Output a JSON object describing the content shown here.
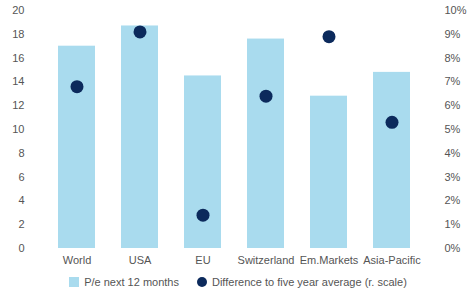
{
  "chart_data": {
    "type": "bar",
    "categories": [
      "World",
      "USA",
      "EU",
      "Switzerland",
      "Em.Markets",
      "Asia-Pacific"
    ],
    "series": [
      {
        "name": "P/e next 12 months",
        "type": "bar",
        "color": "#a9dbee",
        "values": [
          17.0,
          18.7,
          14.5,
          17.6,
          12.8,
          14.8
        ]
      },
      {
        "name": "Difference to five year average (r. scale)",
        "type": "scatter",
        "marker": "circle",
        "color": "#0c2a5c",
        "axis": "y2",
        "values": [
          6.8,
          9.1,
          1.4,
          6.4,
          8.9,
          5.3
        ]
      }
    ],
    "ylim": [
      0,
      20
    ],
    "yticks": [
      0,
      2,
      4,
      6,
      8,
      10,
      12,
      14,
      16,
      18,
      20
    ],
    "y2lim": [
      0,
      10
    ],
    "y2ticks": [
      {
        "value": 0,
        "label": "0%"
      },
      {
        "value": 1,
        "label": "1%"
      },
      {
        "value": 2,
        "label": "2%"
      },
      {
        "value": 3,
        "label": "3%"
      },
      {
        "value": 4,
        "label": "4%"
      },
      {
        "value": 5,
        "label": "5%"
      },
      {
        "value": 6,
        "label": "6%"
      },
      {
        "value": 7,
        "label": "7%"
      },
      {
        "value": 8,
        "label": "8%"
      },
      {
        "value": 9,
        "label": "9%"
      },
      {
        "value": 10,
        "label": "10%"
      }
    ],
    "legend": "bottom",
    "grid": false
  }
}
